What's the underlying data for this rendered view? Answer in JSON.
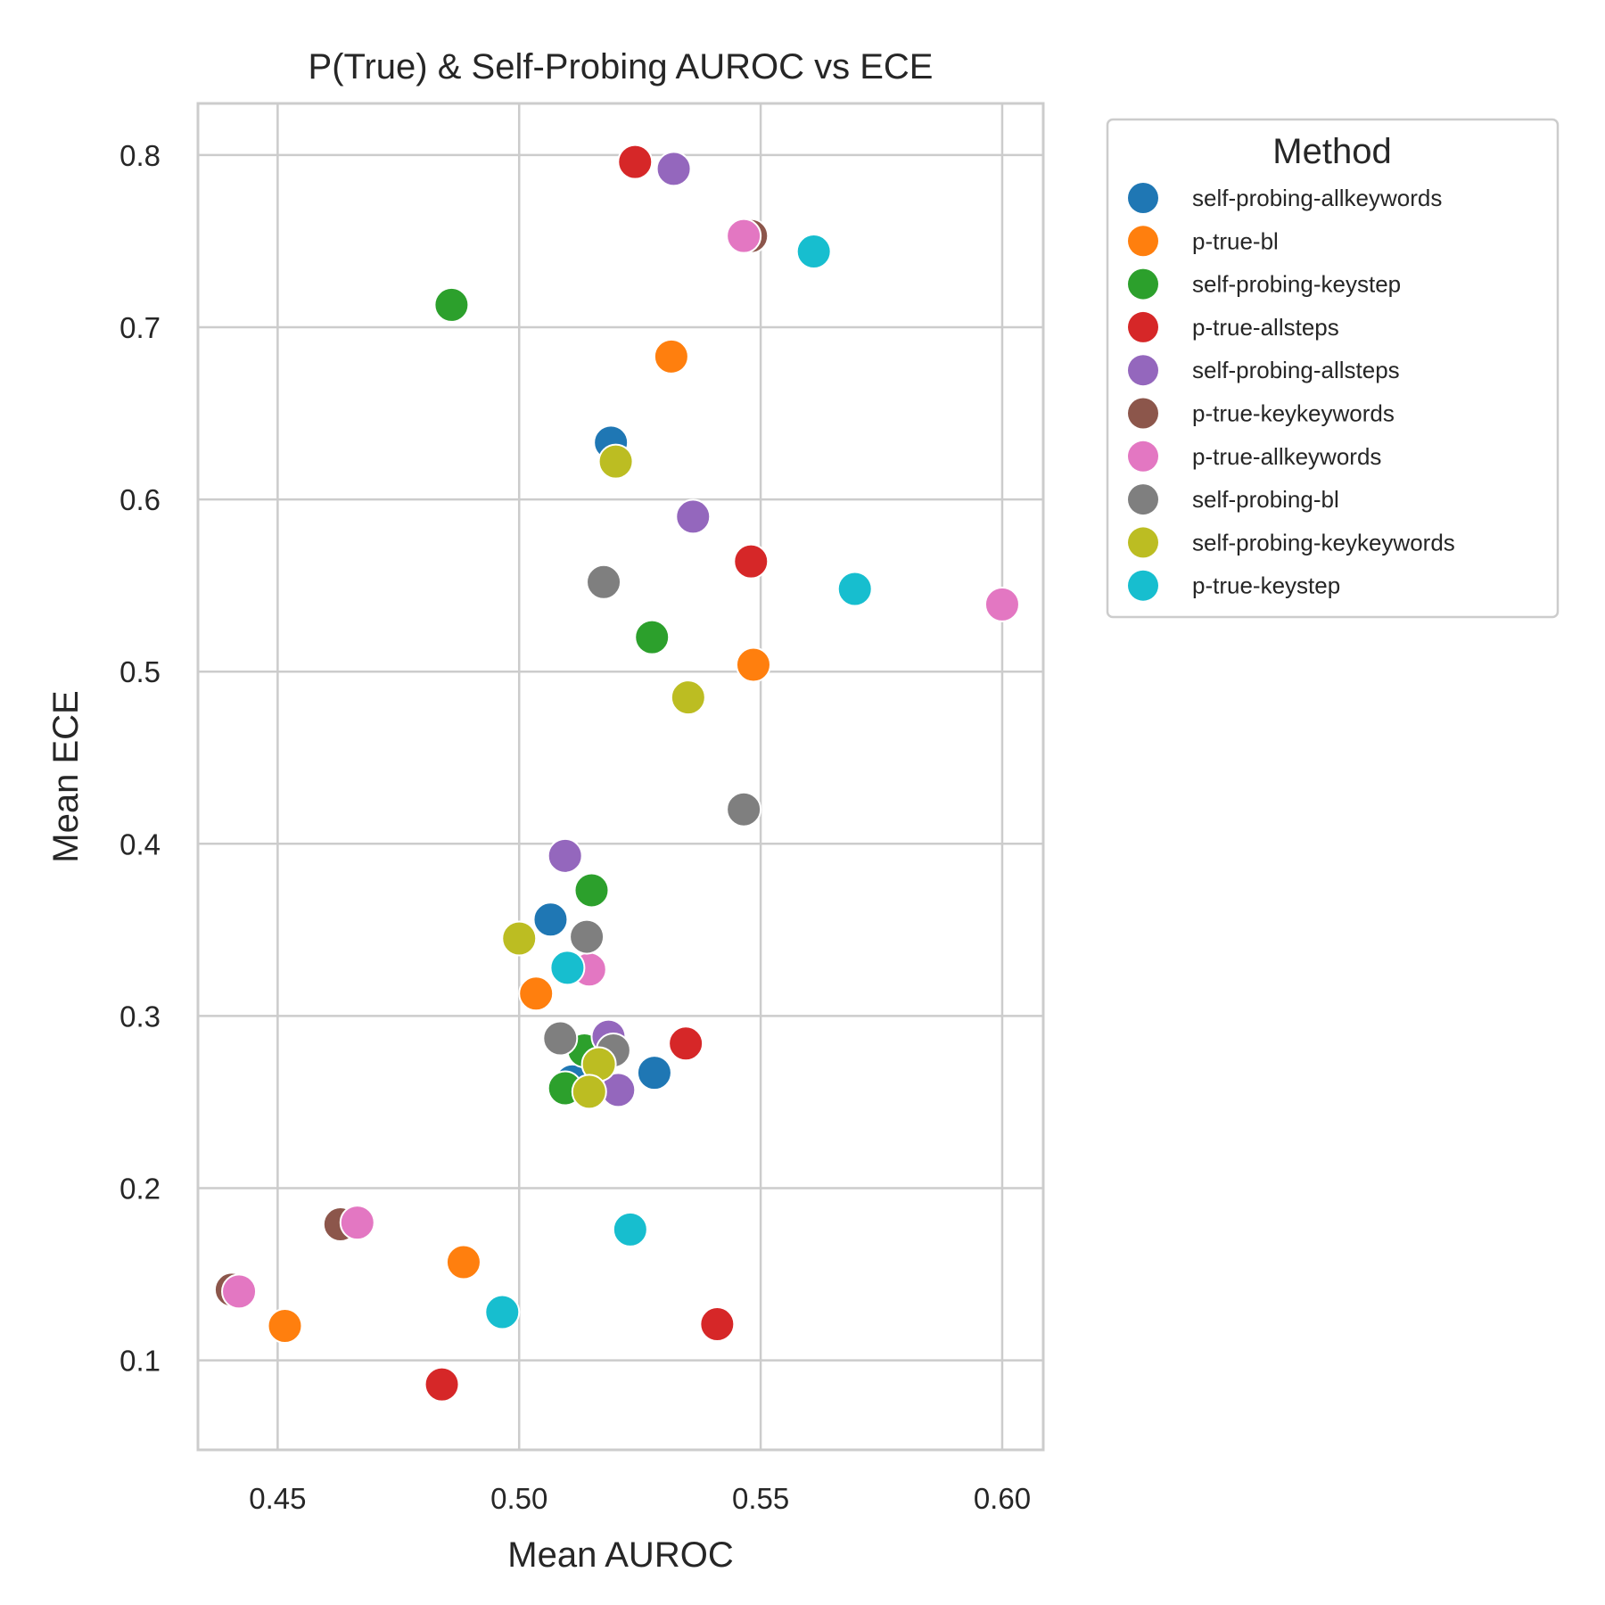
{
  "chart_data": {
    "type": "scatter",
    "title": "P(True) & Self-Probing AUROC vs ECE",
    "xlabel": "Mean AUROC",
    "ylabel": "Mean ECE",
    "xlim": [
      0.4335,
      0.6085
    ],
    "ylim": [
      0.048,
      0.83
    ],
    "xticks": [
      "0.45",
      "0.50",
      "0.55",
      "0.60"
    ],
    "yticks": [
      "0.1",
      "0.2",
      "0.3",
      "0.4",
      "0.5",
      "0.6",
      "0.7",
      "0.8"
    ],
    "grid": true,
    "legend": {
      "title": "Method",
      "placement": "outside-right"
    },
    "series": [
      {
        "name": "self-probing-allkeywords",
        "color": "#1f77b4",
        "points": [
          [
            0.519,
            0.633
          ],
          [
            0.5065,
            0.356
          ],
          [
            0.528,
            0.267
          ],
          [
            0.511,
            0.262
          ]
        ]
      },
      {
        "name": "p-true-bl",
        "color": "#ff7f0e",
        "points": [
          [
            0.5315,
            0.683
          ],
          [
            0.5485,
            0.504
          ],
          [
            0.5035,
            0.313
          ],
          [
            0.4885,
            0.157
          ],
          [
            0.4515,
            0.12
          ]
        ]
      },
      {
        "name": "self-probing-keystep",
        "color": "#2ca02c",
        "points": [
          [
            0.486,
            0.713
          ],
          [
            0.5275,
            0.52
          ],
          [
            0.515,
            0.373
          ],
          [
            0.5135,
            0.28
          ],
          [
            0.5095,
            0.258
          ]
        ]
      },
      {
        "name": "p-true-allsteps",
        "color": "#d62728",
        "points": [
          [
            0.524,
            0.796
          ],
          [
            0.548,
            0.564
          ],
          [
            0.5345,
            0.284
          ],
          [
            0.541,
            0.121
          ],
          [
            0.484,
            0.086
          ]
        ]
      },
      {
        "name": "self-probing-allsteps",
        "color": "#9467bd",
        "points": [
          [
            0.532,
            0.792
          ],
          [
            0.536,
            0.59
          ],
          [
            0.5095,
            0.393
          ],
          [
            0.5185,
            0.288
          ],
          [
            0.5205,
            0.257
          ]
        ]
      },
      {
        "name": "p-true-keykeywords",
        "color": "#8c564b",
        "points": [
          [
            0.548,
            0.753
          ],
          [
            0.463,
            0.179
          ],
          [
            0.4405,
            0.141
          ]
        ]
      },
      {
        "name": "p-true-allkeywords",
        "color": "#e377c2",
        "points": [
          [
            0.5465,
            0.753
          ],
          [
            0.6,
            0.539
          ],
          [
            0.5145,
            0.327
          ],
          [
            0.4665,
            0.18
          ],
          [
            0.442,
            0.14
          ]
        ]
      },
      {
        "name": "self-probing-bl",
        "color": "#7f7f7f",
        "points": [
          [
            0.5175,
            0.552
          ],
          [
            0.5465,
            0.42
          ],
          [
            0.514,
            0.346
          ],
          [
            0.5085,
            0.287
          ],
          [
            0.5195,
            0.28
          ]
        ]
      },
      {
        "name": "self-probing-keykeywords",
        "color": "#bcbd22",
        "points": [
          [
            0.52,
            0.622
          ],
          [
            0.535,
            0.485
          ],
          [
            0.5,
            0.345
          ],
          [
            0.5165,
            0.272
          ],
          [
            0.5145,
            0.256
          ]
        ]
      },
      {
        "name": "p-true-keystep",
        "color": "#17becf",
        "points": [
          [
            0.561,
            0.744
          ],
          [
            0.5695,
            0.548
          ],
          [
            0.51,
            0.328
          ],
          [
            0.523,
            0.176
          ],
          [
            0.4965,
            0.128
          ]
        ]
      }
    ]
  }
}
